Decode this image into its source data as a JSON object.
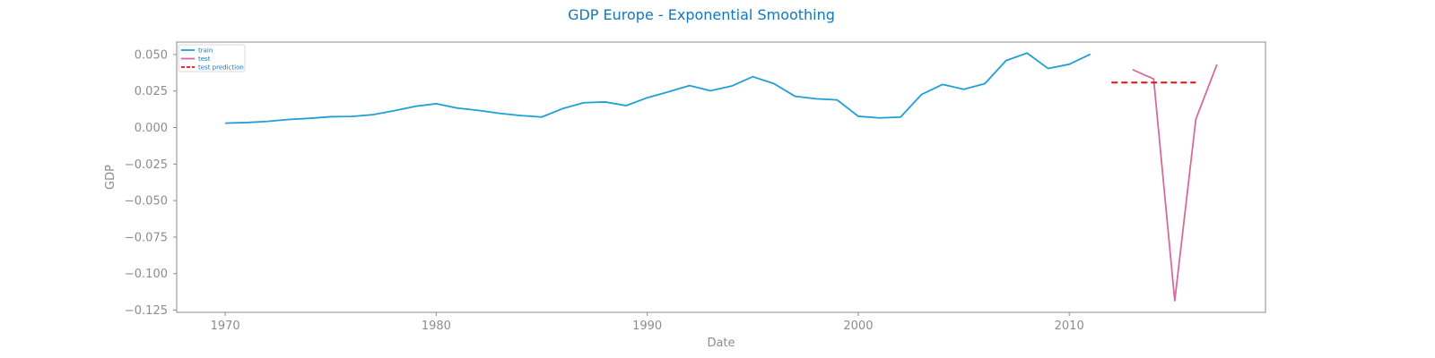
{
  "chart_data": {
    "type": "line",
    "title": "GDP Europe - Exponential Smoothing",
    "xlabel": "Date",
    "ylabel": "GDP",
    "xlim": [
      1967.7,
      2019.3
    ],
    "ylim": [
      -0.1265,
      0.0585
    ],
    "xticks": [
      1970,
      1980,
      1990,
      2000,
      2010
    ],
    "yticks": [
      0.05,
      0.025,
      0.0,
      -0.025,
      -0.05,
      -0.075,
      -0.1,
      -0.125
    ],
    "ytick_labels": [
      "0.050",
      "0.025",
      "0.000",
      "−0.025",
      "−0.050",
      "−0.075",
      "−0.100",
      "−0.125"
    ],
    "grid": false,
    "legend_position": "top-left",
    "series": [
      {
        "name": "train",
        "color": "#1f9fd6",
        "style": "solid",
        "x": [
          1970,
          1971,
          1972,
          1973,
          1974,
          1975,
          1976,
          1977,
          1978,
          1979,
          1980,
          1981,
          1982,
          1983,
          1984,
          1985,
          1986,
          1987,
          1988,
          1989,
          1990,
          1991,
          1992,
          1993,
          1994,
          1995,
          1996,
          1997,
          1998,
          1999,
          2000,
          2001,
          2002,
          2003,
          2004,
          2005,
          2006,
          2007,
          2008,
          2009,
          2010,
          2011
        ],
        "y": [
          0.003,
          0.0034,
          0.0042,
          0.0055,
          0.0063,
          0.0074,
          0.0076,
          0.0088,
          0.0115,
          0.0145,
          0.0163,
          0.0133,
          0.0117,
          0.0097,
          0.0082,
          0.0072,
          0.013,
          0.017,
          0.0175,
          0.015,
          0.0204,
          0.0244,
          0.0287,
          0.0252,
          0.0284,
          0.0348,
          0.0301,
          0.0214,
          0.0197,
          0.0189,
          0.0077,
          0.0066,
          0.0071,
          0.0226,
          0.0295,
          0.0262,
          0.03,
          0.0458,
          0.051,
          0.0404,
          0.0433,
          0.0502
        ]
      },
      {
        "name": "test",
        "color": "#d6699f",
        "style": "solid",
        "x": [
          2013,
          2014,
          2015,
          2016,
          2017
        ],
        "y": [
          0.0396,
          0.0333,
          -0.1185,
          0.0057,
          0.0432
        ]
      },
      {
        "name": "test prediction",
        "color": "#e01010",
        "style": "dashed",
        "x": [
          2012,
          2013,
          2014,
          2015,
          2016
        ],
        "y": [
          0.0308,
          0.0308,
          0.0308,
          0.0308,
          0.0308
        ]
      }
    ]
  }
}
